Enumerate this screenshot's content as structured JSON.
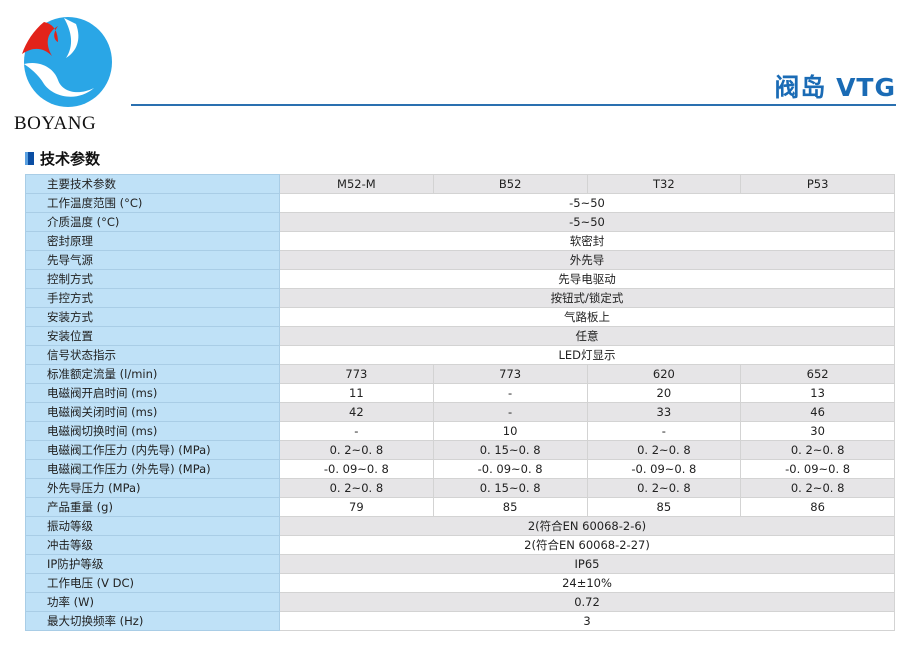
{
  "brand": {
    "name": "BOYANG",
    "colors": {
      "blue": "#2aa6e6",
      "red": "#e2231a"
    }
  },
  "header": {
    "title": "阀岛 VTG",
    "accent": "#1a6bb5"
  },
  "section": {
    "title": "技术参数"
  },
  "table": {
    "header": {
      "label": "主要技术参数",
      "models": [
        "M52-M",
        "B52",
        "T32",
        "P53"
      ]
    },
    "rows": [
      {
        "label": "工作温度范围 (°C)",
        "span": "-5~50"
      },
      {
        "label": "介质温度 (°C)",
        "span": "-5~50"
      },
      {
        "label": "密封原理",
        "span": "软密封"
      },
      {
        "label": "先导气源",
        "span": "外先导"
      },
      {
        "label": "控制方式",
        "span": "先导电驱动"
      },
      {
        "label": "手控方式",
        "span": "按钮式/锁定式"
      },
      {
        "label": "安装方式",
        "span": "气路板上"
      },
      {
        "label": "安装位置",
        "span": "任意"
      },
      {
        "label": "信号状态指示",
        "span": "LED灯显示"
      },
      {
        "label": "标准额定流量 (l/min)",
        "values": [
          "773",
          "773",
          "620",
          "652"
        ]
      },
      {
        "label": "电磁阀开启时间 (ms)",
        "values": [
          "11",
          "-",
          "20",
          "13"
        ]
      },
      {
        "label": "电磁阀关闭时间 (ms)",
        "values": [
          "42",
          "-",
          "33",
          "46"
        ]
      },
      {
        "label": "电磁阀切换时间 (ms)",
        "values": [
          "-",
          "10",
          "-",
          "30"
        ]
      },
      {
        "label": "电磁阀工作压力 (内先导) (MPa)",
        "values": [
          "0. 2~0. 8",
          "0. 15~0. 8",
          "0. 2~0. 8",
          "0. 2~0. 8"
        ]
      },
      {
        "label": "电磁阀工作压力 (外先导) (MPa)",
        "values": [
          "-0. 09~0. 8",
          "-0. 09~0. 8",
          "-0. 09~0. 8",
          "-0. 09~0. 8"
        ]
      },
      {
        "label": "外先导压力 (MPa)",
        "values": [
          "0. 2~0. 8",
          "0. 15~0. 8",
          "0. 2~0. 8",
          "0. 2~0. 8"
        ]
      },
      {
        "label": "产品重量 (g)",
        "values": [
          "79",
          "85",
          "85",
          "86"
        ]
      },
      {
        "label": "振动等级",
        "span": "2(符合EN 60068-2-6)"
      },
      {
        "label": "冲击等级",
        "span": "2(符合EN 60068-2-27)"
      },
      {
        "label": "IP防护等级",
        "span": "IP65"
      },
      {
        "label": "工作电压 (V DC)",
        "span": "24±10%"
      },
      {
        "label": "功率 (W)",
        "span": "0.72"
      },
      {
        "label": "最大切换频率 (Hz)",
        "span": "3"
      }
    ]
  }
}
